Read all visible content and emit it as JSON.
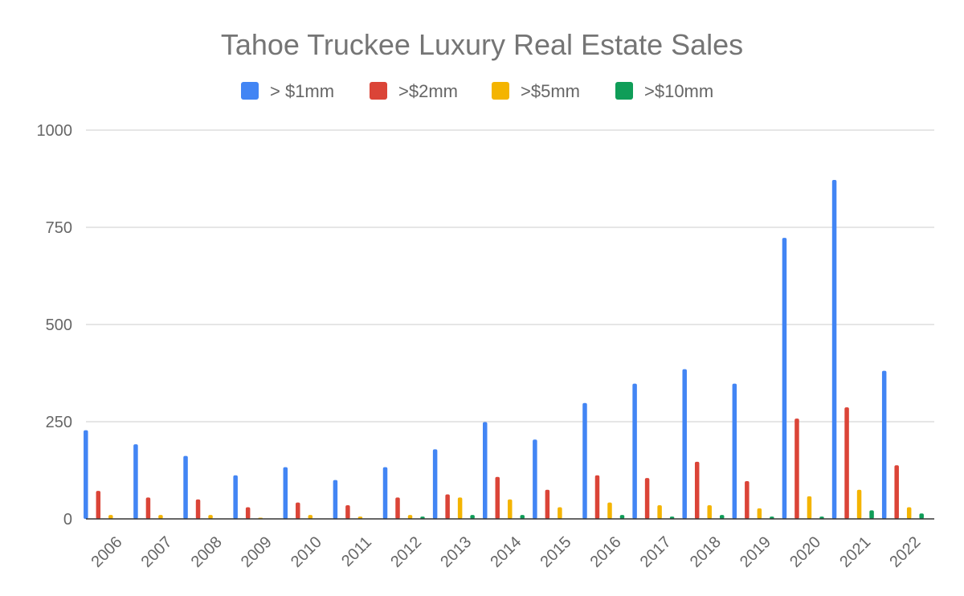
{
  "chart_data": {
    "type": "bar",
    "title": "Tahoe Truckee Luxury Real Estate Sales",
    "xlabel": "",
    "ylabel": "",
    "ylim": [
      0,
      1000
    ],
    "yticks": [
      0,
      250,
      500,
      750,
      1000
    ],
    "grid": true,
    "legend_position": "top",
    "categories": [
      "2006",
      "2007",
      "2008",
      "2009",
      "2010",
      "2011",
      "2012",
      "2013",
      "2014",
      "2015",
      "2016",
      "2017",
      "2018",
      "2019",
      "2020",
      "2021",
      "2022"
    ],
    "series": [
      {
        "name": "> $1mm",
        "color": "#4285F4",
        "values": [
          228,
          192,
          162,
          112,
          133,
          100,
          133,
          179,
          249,
          204,
          298,
          348,
          385,
          348,
          723,
          872,
          381
        ]
      },
      {
        "name": ">$2mm",
        "color": "#DB4437",
        "values": [
          72,
          55,
          50,
          30,
          42,
          35,
          55,
          63,
          108,
          75,
          112,
          105,
          147,
          97,
          258,
          287,
          138
        ]
      },
      {
        "name": ">$5mm",
        "color": "#F4B400",
        "values": [
          10,
          10,
          10,
          3,
          10,
          6,
          10,
          55,
          50,
          30,
          42,
          35,
          35,
          27,
          58,
          75,
          30
        ]
      },
      {
        "name": ">$10mm",
        "color": "#0F9D58",
        "values": [
          0,
          0,
          0,
          0,
          0,
          0,
          6,
          10,
          10,
          0,
          10,
          6,
          10,
          6,
          6,
          22,
          14
        ]
      }
    ]
  }
}
